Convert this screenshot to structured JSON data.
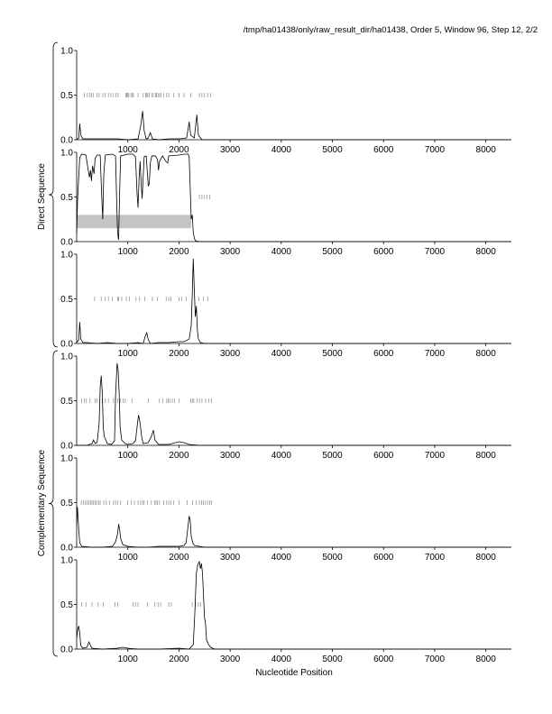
{
  "page_title": "/tmp/ha01438/only/raw_result_dir/ha01438, Order 5, Window 96, Step 12, 2/2",
  "group_labels": {
    "direct": "Direct Sequence",
    "complementary": "Complementary Sequence"
  },
  "chart_data": {
    "type": "line",
    "xlabel": "Nucleotide Position",
    "xlim": [
      0,
      8500
    ],
    "x_ticks": [
      "1000",
      "2000",
      "3000",
      "4000",
      "5000",
      "6000",
      "7000",
      "8000"
    ],
    "y_ticks": [
      "0.0",
      "0.5",
      "1.0"
    ],
    "ylim": [
      0,
      1
    ],
    "grid": false,
    "panels": [
      {
        "group": "direct",
        "frame": 1,
        "series": [
          [
            0,
            0
          ],
          [
            40,
            0.02
          ],
          [
            60,
            0.18
          ],
          [
            80,
            0.05
          ],
          [
            120,
            0.01
          ],
          [
            400,
            0.01
          ],
          [
            600,
            0.01
          ],
          [
            800,
            0.01
          ],
          [
            1000,
            0
          ],
          [
            1200,
            0.01
          ],
          [
            1250,
            0.15
          ],
          [
            1290,
            0.32
          ],
          [
            1320,
            0.1
          ],
          [
            1360,
            0.01
          ],
          [
            1400,
            0.02
          ],
          [
            1440,
            0.08
          ],
          [
            1480,
            0.01
          ],
          [
            1600,
            0
          ],
          [
            1800,
            0.01
          ],
          [
            2000,
            0.01
          ],
          [
            2150,
            0.02
          ],
          [
            2200,
            0.2
          ],
          [
            2230,
            0.05
          ],
          [
            2300,
            0.02
          ],
          [
            2350,
            0.28
          ],
          [
            2380,
            0.05
          ],
          [
            2450,
            0
          ],
          [
            8500,
            0
          ]
        ],
        "markers_y": 0.5,
        "markers_x": [
          150,
          210,
          260,
          290,
          330,
          400,
          440,
          510,
          560,
          620,
          670,
          720,
          770,
          810,
          960,
          980,
          1000,
          1020,
          1060,
          1090,
          1110,
          1200,
          1300,
          1350,
          1370,
          1390,
          1420,
          1470,
          1500,
          1540,
          1560,
          1590,
          1620,
          1650,
          1700,
          1760,
          1800,
          1900,
          2000,
          2100,
          2230,
          2400,
          2450,
          2500,
          2560,
          2620
        ]
      },
      {
        "group": "direct",
        "frame": 2,
        "series": [
          [
            0,
            0.1
          ],
          [
            20,
            0.5
          ],
          [
            60,
            0.94
          ],
          [
            100,
            0.98
          ],
          [
            180,
            0.97
          ],
          [
            220,
            0.82
          ],
          [
            250,
            0.72
          ],
          [
            270,
            0.8
          ],
          [
            290,
            0.68
          ],
          [
            310,
            0.85
          ],
          [
            340,
            0.76
          ],
          [
            360,
            0.93
          ],
          [
            400,
            0.97
          ],
          [
            460,
            0.97
          ],
          [
            490,
            0.5
          ],
          [
            510,
            0.25
          ],
          [
            530,
            0.75
          ],
          [
            560,
            0.97
          ],
          [
            700,
            0.98
          ],
          [
            760,
            0.96
          ],
          [
            780,
            0.5
          ],
          [
            800,
            0.1
          ],
          [
            820,
            0.02
          ],
          [
            840,
            0.55
          ],
          [
            860,
            0.96
          ],
          [
            1000,
            0.98
          ],
          [
            1100,
            0.98
          ],
          [
            1150,
            0.95
          ],
          [
            1180,
            0.55
          ],
          [
            1200,
            0.38
          ],
          [
            1220,
            0.7
          ],
          [
            1240,
            0.9
          ],
          [
            1260,
            0.66
          ],
          [
            1280,
            0.48
          ],
          [
            1300,
            0.72
          ],
          [
            1320,
            0.95
          ],
          [
            1360,
            0.96
          ],
          [
            1400,
            0.62
          ],
          [
            1420,
            0.65
          ],
          [
            1440,
            0.88
          ],
          [
            1470,
            0.96
          ],
          [
            1540,
            0.96
          ],
          [
            1580,
            0.92
          ],
          [
            1600,
            0.8
          ],
          [
            1620,
            0.9
          ],
          [
            1680,
            0.96
          ],
          [
            1740,
            0.9
          ],
          [
            1780,
            0.88
          ],
          [
            1800,
            0.96
          ],
          [
            2000,
            0.97
          ],
          [
            2100,
            0.98
          ],
          [
            2180,
            0.98
          ],
          [
            2200,
            0.95
          ],
          [
            2220,
            0.6
          ],
          [
            2240,
            0.25
          ],
          [
            2260,
            0.3
          ],
          [
            2280,
            0.1
          ],
          [
            2300,
            0.04
          ],
          [
            2320,
            0.01
          ],
          [
            2400,
            0
          ],
          [
            8500,
            0
          ]
        ],
        "markers_y": 0.5,
        "markers_x": [
          2400,
          2450,
          2500,
          2550,
          2600
        ],
        "band": {
          "x0": 0,
          "x1": 2240,
          "y0": 0.15,
          "y1": 0.3
        }
      },
      {
        "group": "direct",
        "frame": 3,
        "series": [
          [
            0,
            0.01
          ],
          [
            40,
            0.04
          ],
          [
            60,
            0.24
          ],
          [
            80,
            0.05
          ],
          [
            120,
            0.01
          ],
          [
            200,
            0.01
          ],
          [
            400,
            0
          ],
          [
            600,
            0.01
          ],
          [
            800,
            0
          ],
          [
            1000,
            0
          ],
          [
            1200,
            0.01
          ],
          [
            1300,
            0
          ],
          [
            1340,
            0.08
          ],
          [
            1370,
            0.12
          ],
          [
            1400,
            0.04
          ],
          [
            1440,
            0
          ],
          [
            1600,
            0.01
          ],
          [
            1800,
            0.01
          ],
          [
            2000,
            0.02
          ],
          [
            2100,
            0.02
          ],
          [
            2200,
            0.05
          ],
          [
            2240,
            0.2
          ],
          [
            2260,
            0.55
          ],
          [
            2280,
            0.95
          ],
          [
            2300,
            0.6
          ],
          [
            2320,
            0.3
          ],
          [
            2340,
            0.42
          ],
          [
            2360,
            0.15
          ],
          [
            2380,
            0.05
          ],
          [
            2420,
            0.01
          ],
          [
            2500,
            0
          ],
          [
            8500,
            0
          ]
        ],
        "markers_y": 0.5,
        "markers_x": [
          350,
          480,
          560,
          620,
          700,
          800,
          820,
          880,
          970,
          1030,
          1160,
          1230,
          1330,
          1480,
          1580,
          1750,
          1800,
          1840,
          2000,
          2050,
          2140,
          2390,
          2480,
          2560
        ]
      },
      {
        "group": "complementary",
        "frame": 1,
        "series": [
          [
            0,
            0
          ],
          [
            200,
            0
          ],
          [
            300,
            0.02
          ],
          [
            330,
            0.06
          ],
          [
            360,
            0.02
          ],
          [
            400,
            0.03
          ],
          [
            440,
            0.25
          ],
          [
            460,
            0.65
          ],
          [
            480,
            0.78
          ],
          [
            500,
            0.6
          ],
          [
            520,
            0.2
          ],
          [
            540,
            0.1
          ],
          [
            600,
            0.02
          ],
          [
            680,
            0.01
          ],
          [
            740,
            0.05
          ],
          [
            760,
            0.55
          ],
          [
            790,
            0.92
          ],
          [
            810,
            0.85
          ],
          [
            830,
            0.6
          ],
          [
            850,
            0.2
          ],
          [
            880,
            0.06
          ],
          [
            950,
            0.02
          ],
          [
            1000,
            0.01
          ],
          [
            1100,
            0.02
          ],
          [
            1150,
            0.05
          ],
          [
            1180,
            0.2
          ],
          [
            1210,
            0.34
          ],
          [
            1240,
            0.25
          ],
          [
            1270,
            0.1
          ],
          [
            1300,
            0.02
          ],
          [
            1400,
            0.03
          ],
          [
            1460,
            0.1
          ],
          [
            1500,
            0.17
          ],
          [
            1530,
            0.06
          ],
          [
            1600,
            0.01
          ],
          [
            1800,
            0.01
          ],
          [
            2000,
            0.04
          ],
          [
            2100,
            0.03
          ],
          [
            2200,
            0.01
          ],
          [
            2400,
            0
          ],
          [
            8500,
            0
          ]
        ],
        "markers_y": 0.5,
        "markers_x": [
          100,
          150,
          190,
          260,
          360,
          400,
          500,
          560,
          620,
          720,
          800,
          860,
          910,
          950,
          1080,
          1400,
          1620,
          1680,
          1760,
          1790,
          1820,
          1870,
          1910,
          2000,
          2230,
          2260,
          2290,
          2350,
          2400,
          2450,
          2520,
          2580,
          2640
        ]
      },
      {
        "group": "complementary",
        "frame": 2,
        "series": [
          [
            0,
            0.25
          ],
          [
            15,
            0.45
          ],
          [
            40,
            0.2
          ],
          [
            60,
            0.05
          ],
          [
            100,
            0.01
          ],
          [
            300,
            0
          ],
          [
            500,
            0
          ],
          [
            700,
            0.01
          ],
          [
            760,
            0.06
          ],
          [
            800,
            0.15
          ],
          [
            820,
            0.26
          ],
          [
            840,
            0.2
          ],
          [
            860,
            0.1
          ],
          [
            900,
            0.03
          ],
          [
            1000,
            0.01
          ],
          [
            1200,
            0
          ],
          [
            1400,
            0
          ],
          [
            1600,
            0.01
          ],
          [
            1800,
            0.01
          ],
          [
            2000,
            0.01
          ],
          [
            2100,
            0.02
          ],
          [
            2140,
            0.05
          ],
          [
            2170,
            0.2
          ],
          [
            2200,
            0.35
          ],
          [
            2220,
            0.3
          ],
          [
            2240,
            0.12
          ],
          [
            2270,
            0.05
          ],
          [
            2300,
            0.02
          ],
          [
            2400,
            0.01
          ],
          [
            2500,
            0
          ],
          [
            8500,
            0
          ]
        ],
        "markers_y": 0.5,
        "markers_x": [
          90,
          130,
          170,
          200,
          240,
          270,
          300,
          330,
          360,
          390,
          430,
          460,
          530,
          580,
          640,
          720,
          760,
          800,
          860,
          1000,
          1070,
          1130,
          1200,
          1250,
          1290,
          1320,
          1380,
          1460,
          1520,
          1550,
          1580,
          1620,
          1700,
          1760,
          1800,
          1840,
          1900,
          2000,
          2160,
          2270,
          2340,
          2400,
          2440,
          2480,
          2520,
          2560,
          2600,
          2640
        ]
      },
      {
        "group": "complementary",
        "frame": 3,
        "series": [
          [
            0,
            0.12
          ],
          [
            20,
            0.22
          ],
          [
            40,
            0.26
          ],
          [
            60,
            0.18
          ],
          [
            80,
            0.04
          ],
          [
            120,
            0.01
          ],
          [
            200,
            0.02
          ],
          [
            240,
            0.08
          ],
          [
            270,
            0.04
          ],
          [
            300,
            0.01
          ],
          [
            500,
            0
          ],
          [
            800,
            0.01
          ],
          [
            900,
            0.02
          ],
          [
            1000,
            0.01
          ],
          [
            1200,
            0
          ],
          [
            1600,
            0
          ],
          [
            2000,
            0.01
          ],
          [
            2200,
            0
          ],
          [
            2280,
            0.05
          ],
          [
            2310,
            0.4
          ],
          [
            2340,
            0.85
          ],
          [
            2370,
            0.95
          ],
          [
            2400,
            0.98
          ],
          [
            2420,
            0.9
          ],
          [
            2440,
            0.96
          ],
          [
            2460,
            0.85
          ],
          [
            2480,
            0.6
          ],
          [
            2500,
            0.35
          ],
          [
            2520,
            0.28
          ],
          [
            2540,
            0.1
          ],
          [
            2580,
            0.05
          ],
          [
            2620,
            0.02
          ],
          [
            2700,
            0
          ],
          [
            8500,
            0
          ]
        ],
        "markers_y": 0.5,
        "markers_x": [
          100,
          180,
          300,
          420,
          520,
          750,
          800,
          1100,
          1150,
          1200,
          1380,
          1530,
          1590,
          1640,
          1800,
          1850,
          2260,
          2320,
          2380,
          2420
        ]
      }
    ]
  }
}
